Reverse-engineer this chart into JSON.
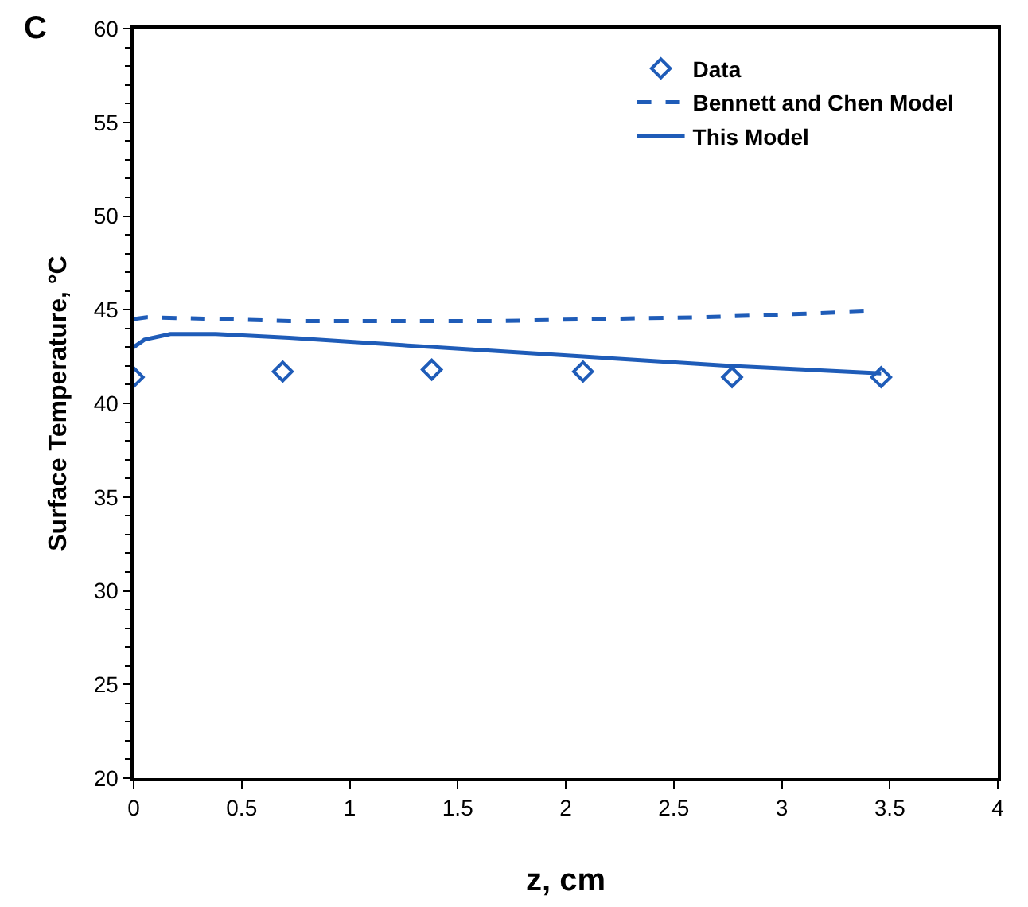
{
  "chart_data": {
    "type": "line",
    "xlabel": "z, cm",
    "ylabel": "Surface Temperature, °C",
    "annotations": [
      "C"
    ],
    "xlim": [
      0,
      4
    ],
    "xticks": [
      0,
      0.5,
      1,
      1.5,
      2,
      2.5,
      3,
      3.5,
      4
    ],
    "ylim": [
      20,
      60
    ],
    "yticks": [
      20,
      25,
      30,
      35,
      40,
      45,
      50,
      55,
      60
    ],
    "grid": false,
    "legend": "top right",
    "series": [
      {
        "name": "Data",
        "type": "scatter",
        "marker": "diamond",
        "color": "#1f5cb8",
        "x": [
          0,
          0.69,
          1.38,
          2.08,
          2.77,
          3.46
        ],
        "values": [
          41.4,
          41.7,
          41.8,
          41.7,
          41.4,
          41.4
        ]
      },
      {
        "name": "Bennett and Chen Model",
        "line_style": "dashed",
        "color": "#1f5cb8",
        "x": [
          0,
          0.06,
          0.72,
          1.7,
          2.12,
          2.64,
          3.38
        ],
        "values": [
          44.5,
          44.6,
          44.4,
          44.4,
          44.5,
          44.6,
          44.9
        ]
      },
      {
        "name": "This Model",
        "line_style": "solid",
        "color": "#1f5cb8",
        "x": [
          0,
          0.05,
          0.17,
          0.38,
          0.72,
          1.39,
          2.08,
          2.77,
          3.46
        ],
        "values": [
          43.0,
          43.4,
          43.7,
          43.7,
          43.5,
          43.0,
          42.5,
          42.0,
          41.6
        ]
      }
    ]
  }
}
